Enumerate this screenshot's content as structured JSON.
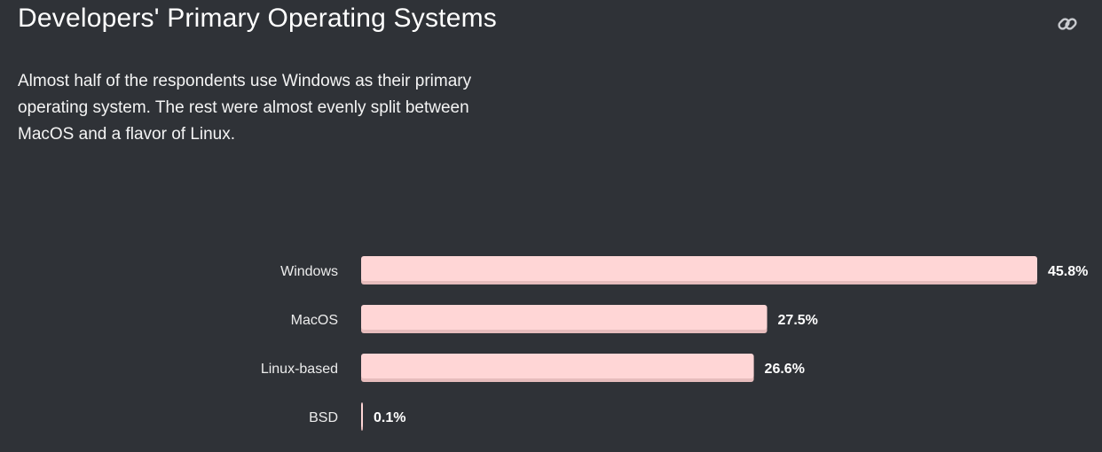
{
  "header": {
    "title": "Developers' Primary Operating Systems",
    "link_icon": "link-icon"
  },
  "description": "Almost half of the respondents use Windows as their primary operating system. The rest were almost evenly split between MacOS and a flavor of Linux.",
  "colors": {
    "background": "#2f3237",
    "bar": "#ffd6d6",
    "bar_shadow": "#e6bcbc"
  },
  "chart_data": {
    "type": "bar",
    "orientation": "horizontal",
    "categories": [
      "Windows",
      "MacOS",
      "Linux-based",
      "BSD"
    ],
    "values": [
      45.8,
      27.5,
      26.6,
      0.1
    ],
    "value_labels": [
      "45.8%",
      "27.5%",
      "26.6%",
      "0.1%"
    ],
    "unit": "%",
    "xlim": [
      0,
      45.8
    ],
    "grid": false,
    "legend": "none"
  }
}
